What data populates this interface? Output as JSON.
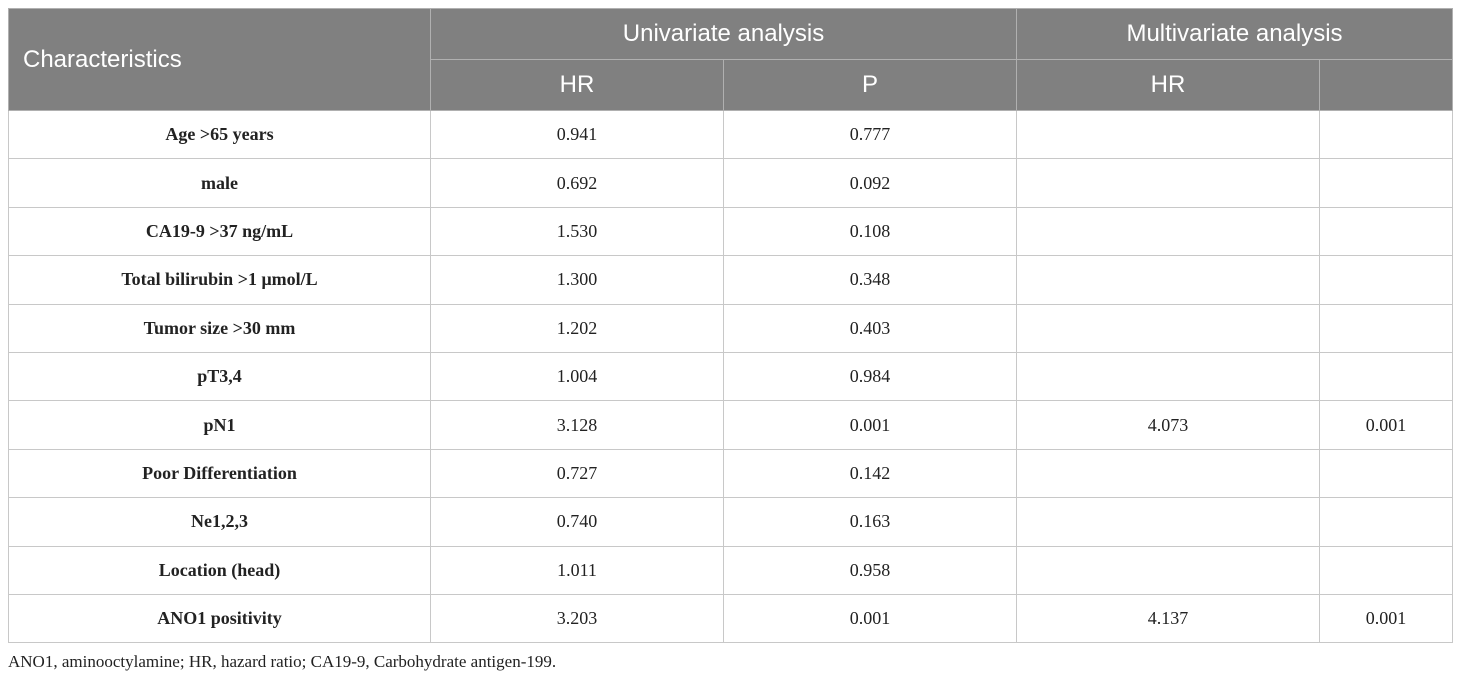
{
  "table": {
    "header": {
      "characteristics": "Characteristics",
      "univariate": "Univariate analysis",
      "multivariate": "Multivariate analysis",
      "uni_hr": "HR",
      "uni_p": "P",
      "multi_hr": "HR"
    },
    "rows": [
      {
        "label": "Age >65 years",
        "uni_hr": "0.941",
        "uni_p": "0.777"
      },
      {
        "label": "male",
        "uni_hr": "0.692",
        "uni_p": "0.092"
      },
      {
        "label": "CA19-9 >37 ng/mL",
        "uni_hr": "1.530",
        "uni_p": "0.108"
      },
      {
        "label": "Total bilirubin >1 μmol/L",
        "uni_hr": "1.300",
        "uni_p": "0.348"
      },
      {
        "label": "Tumor size >30 mm",
        "uni_hr": "1.202",
        "uni_p": "0.403"
      },
      {
        "label": "pT3,4",
        "uni_hr": "1.004",
        "uni_p": "0.984"
      },
      {
        "label": "pN1",
        "uni_hr": "3.128",
        "uni_p": "0.001",
        "multi_hr": "4.073",
        "multi_p": "0.001"
      },
      {
        "label": "Poor Differentiation",
        "uni_hr": "0.727",
        "uni_p": "0.142"
      },
      {
        "label": "Ne1,2,3",
        "uni_hr": "0.740",
        "uni_p": "0.163"
      },
      {
        "label": "Location (head)",
        "uni_hr": "1.011",
        "uni_p": "0.958"
      },
      {
        "label": "ANO1 positivity",
        "uni_hr": "3.203",
        "uni_p": "0.001",
        "multi_hr": "4.137",
        "multi_p": "0.001"
      }
    ]
  },
  "footnote": "ANO1, aminooctylamine; HR, hazard ratio; CA19-9, Carbohydrate antigen-199."
}
